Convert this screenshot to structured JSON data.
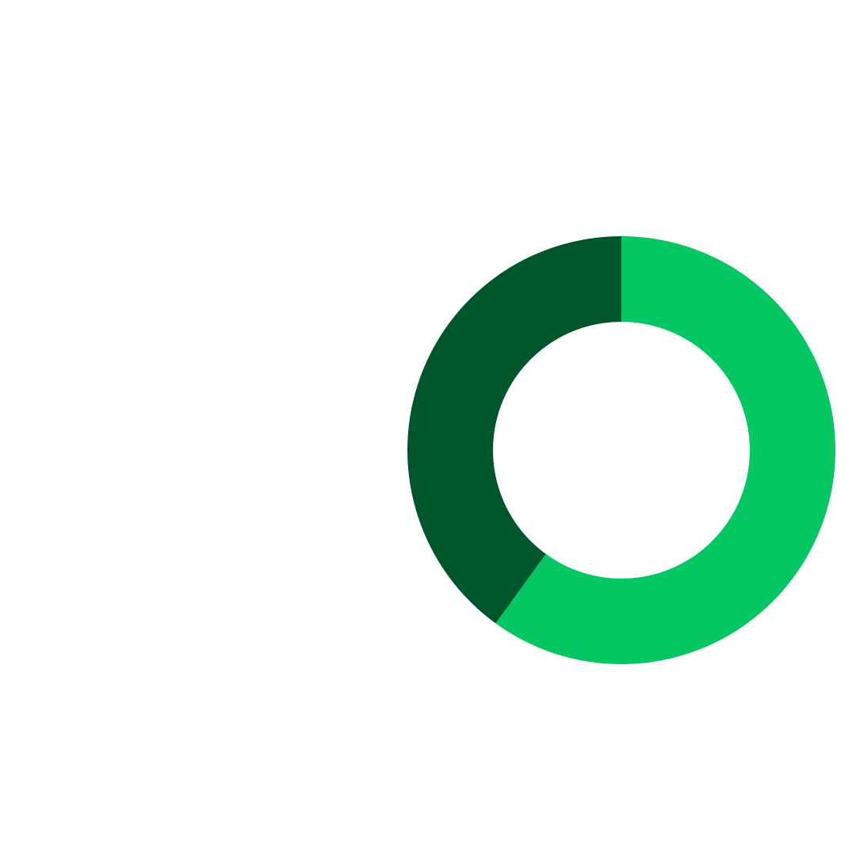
{
  "chart_data": {
    "type": "pie",
    "donut": true,
    "start_angle_deg": 0,
    "direction": "clockwise",
    "legend": "none",
    "title": "",
    "series": [
      {
        "value": 60,
        "color": "#04c763"
      },
      {
        "value": 40,
        "color": "#00562b"
      }
    ]
  },
  "colors": {
    "background": "#ffffff",
    "accent": "#04c763",
    "dark": "#00562b"
  }
}
